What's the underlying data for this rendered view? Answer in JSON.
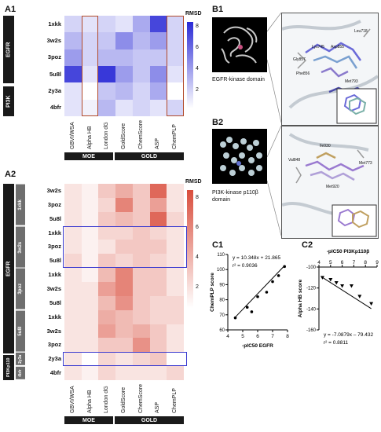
{
  "panels": {
    "A1": {
      "label": "A1",
      "colorbar_title": "RMSD",
      "colorbar_ticks": [
        "8",
        "6",
        "4",
        "2"
      ],
      "rows": [
        "1xkk",
        "3w2s",
        "3poz",
        "5u8l",
        "2y3a",
        "4bfr"
      ],
      "groups": [
        "EGFR",
        "PI3K"
      ],
      "columns": [
        "GBVI/WSA",
        "Alpha HB",
        "London dG",
        "GoldScore",
        "ChemScore",
        "ASP",
        "ChemPLP"
      ],
      "software": [
        "MOE",
        "GOLD"
      ],
      "values": [
        [
          2.5,
          2.0,
          2.5,
          2.0,
          4.0,
          7.5,
          2.5
        ],
        [
          3.5,
          2.5,
          3.0,
          5.0,
          3.5,
          4.5,
          2.5
        ],
        [
          4.5,
          2.5,
          3.5,
          3.5,
          3.0,
          3.0,
          2.5
        ],
        [
          7.5,
          2.0,
          8.0,
          4.5,
          3.0,
          5.0,
          2.0
        ],
        [
          2.0,
          1.0,
          3.0,
          3.5,
          2.5,
          4.0,
          1.0
        ],
        [
          2.0,
          1.5,
          3.5,
          2.0,
          2.5,
          2.0,
          2.5
        ]
      ]
    },
    "A2": {
      "label": "A2",
      "colorbar_title": "RMSD",
      "colorbar_ticks": [
        "8",
        "6",
        "4",
        "2"
      ],
      "rows": [
        "3w2s",
        "3poz",
        "5u8l",
        "1xkk",
        "3poz",
        "5u8l",
        "1xkk",
        "3w2s",
        "5u8l",
        "1xkk",
        "3w2s",
        "3poz",
        "2y3a",
        "4bfr"
      ],
      "ligand_groups": [
        "1xkk",
        "3w2s",
        "3poz",
        "5u8l",
        "4bfr",
        "2y3a"
      ],
      "target_groups": [
        "EGFR",
        "PI3Kp110"
      ],
      "columns": [
        "GBVI/WSA",
        "Alpha HB",
        "London dG",
        "GoldScore",
        "ChemScore",
        "ASP",
        "ChemPLP"
      ],
      "software": [
        "MOE",
        "GOLD"
      ],
      "values": [
        [
          2.0,
          1.5,
          3.0,
          4.0,
          3.0,
          6.5,
          2.0
        ],
        [
          2.0,
          1.5,
          2.5,
          5.5,
          3.0,
          4.5,
          2.0
        ],
        [
          2.0,
          1.5,
          3.0,
          3.5,
          3.0,
          6.5,
          2.5
        ],
        [
          2.0,
          1.5,
          2.5,
          2.5,
          3.0,
          2.5,
          2.0
        ],
        [
          2.0,
          1.5,
          2.0,
          3.0,
          3.0,
          3.0,
          2.0
        ],
        [
          2.5,
          1.5,
          3.0,
          2.5,
          3.0,
          2.5,
          2.0
        ],
        [
          2.0,
          1.5,
          3.5,
          5.5,
          3.0,
          3.0,
          2.0
        ],
        [
          2.0,
          2.0,
          4.5,
          5.5,
          3.0,
          3.0,
          2.0
        ],
        [
          2.0,
          2.0,
          3.5,
          5.0,
          3.0,
          2.5,
          2.5
        ],
        [
          2.0,
          2.0,
          4.0,
          3.5,
          3.0,
          2.5,
          2.5
        ],
        [
          2.0,
          2.0,
          4.5,
          3.5,
          4.0,
          3.0,
          2.0
        ],
        [
          2.0,
          2.0,
          3.0,
          3.0,
          5.0,
          3.0,
          2.0
        ],
        [
          2.0,
          1.0,
          2.5,
          2.0,
          2.5,
          3.0,
          1.0
        ],
        [
          2.0,
          1.5,
          2.5,
          2.0,
          2.0,
          2.0,
          2.5
        ]
      ]
    },
    "B1": {
      "label": "B1",
      "caption": "EGFR-kinase domain",
      "residues": [
        "Leu718",
        "Lys745",
        "Asp855",
        "Gly857",
        "Phe856",
        "Met793"
      ]
    },
    "B2": {
      "label": "B2",
      "caption_line1": "PI3K-kinase p110β",
      "caption_line2": "domain",
      "residues": [
        "Ile930",
        "Val848",
        "Met773",
        "Met920"
      ]
    },
    "C1": {
      "label": "C1",
      "xlabel": "-pIC50 EGFR",
      "ylabel": "ChemPLP score",
      "equation": "y = 10.348x + 21.865",
      "r2": "r² = 0.9036",
      "xticks": [
        "4",
        "5",
        "6",
        "7",
        "8"
      ],
      "yticks": [
        "110",
        "100",
        "90",
        "80",
        "70",
        "60"
      ]
    },
    "C2": {
      "label": "C2",
      "xlabel": "-pIC50 PI3Kp110β",
      "ylabel": "Alpha HB score",
      "equation": "y = -7.0879x – 79.432",
      "r2": "r² = 0.8811",
      "xticks": [
        "4",
        "5",
        "6",
        "7",
        "8",
        "9"
      ],
      "yticks": [
        "-100",
        "-120",
        "-140",
        "-160"
      ]
    }
  },
  "chart_data": [
    {
      "type": "scatter",
      "xlabel": "-pIC50 EGFR",
      "ylabel": "ChemPLP score",
      "xlim": [
        4,
        8
      ],
      "ylim": [
        60,
        110
      ],
      "points": [
        [
          4.5,
          68
        ],
        [
          5.3,
          75
        ],
        [
          5.6,
          72
        ],
        [
          6.0,
          82
        ],
        [
          6.6,
          85
        ],
        [
          7.0,
          92
        ],
        [
          7.4,
          96
        ],
        [
          7.8,
          102
        ]
      ],
      "fit": {
        "slope": 10.348,
        "intercept": 21.865,
        "r2": 0.9036
      }
    },
    {
      "type": "scatter",
      "xlabel": "-pIC50 PI3Kp110β",
      "ylabel": "Alpha HB score",
      "xlim": [
        4,
        9
      ],
      "ylim": [
        -160,
        -100
      ],
      "points": [
        [
          4.3,
          -110
        ],
        [
          5.0,
          -112
        ],
        [
          5.5,
          -115
        ],
        [
          6.0,
          -118
        ],
        [
          6.8,
          -118
        ],
        [
          7.5,
          -128
        ],
        [
          8.5,
          -135
        ]
      ],
      "fit": {
        "slope": -7.0879,
        "intercept": -79.432,
        "r2": 0.8811
      }
    }
  ]
}
